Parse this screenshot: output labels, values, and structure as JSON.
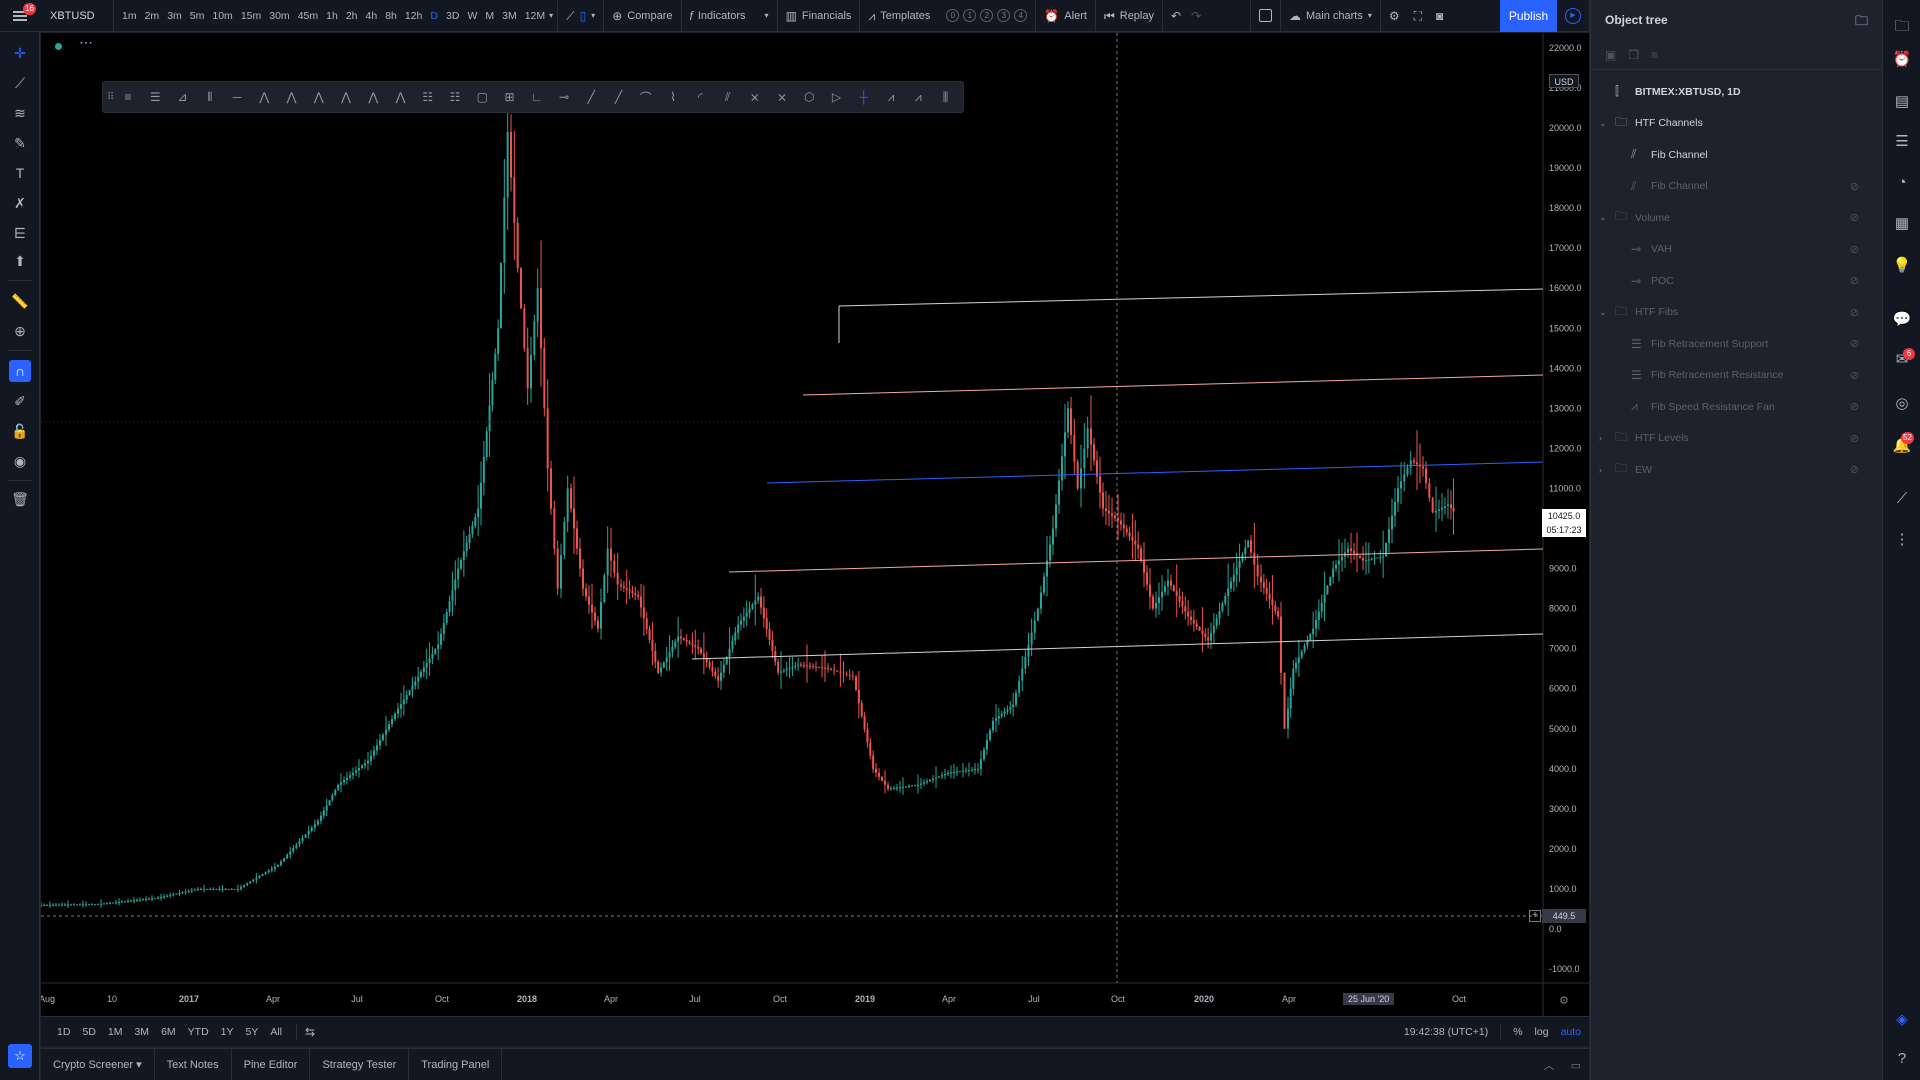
{
  "app": {
    "menu_badge": "16",
    "symbol": "XBTUSD",
    "timeframes": [
      "1m",
      "2m",
      "3m",
      "5m",
      "10m",
      "15m",
      "30m",
      "45m",
      "1h",
      "2h",
      "4h",
      "8h",
      "12h",
      "D",
      "3D",
      "W",
      "M",
      "3M",
      "12M"
    ],
    "active_timeframe": "D",
    "compare_label": "Compare",
    "indicators_label": "Indicators",
    "financials_label": "Financials",
    "templates_label": "Templates",
    "template_slots": [
      "0",
      "1",
      "2",
      "3",
      "4"
    ],
    "alert_label": "Alert",
    "replay_label": "Replay",
    "layout_label": "Main charts",
    "publish_label": "Publish"
  },
  "chart": {
    "currency": "USD",
    "price_axis": [
      "22000.0",
      "21000.0",
      "20000.0",
      "19000.0",
      "18000.0",
      "17000.0",
      "16000.0",
      "15000.0",
      "14000.0",
      "13000.0",
      "12000.0",
      "11000.0",
      "10000.0",
      "9000.0",
      "8000.0",
      "7000.0",
      "6000.0",
      "5000.0",
      "4000.0",
      "3000.0",
      "2000.0",
      "1000.0",
      "0.0",
      "-1000.0"
    ],
    "time_axis": [
      "Aug",
      "10",
      "2017",
      "Apr",
      "Jul",
      "Oct",
      "2018",
      "Apr",
      "Jul",
      "Oct",
      "2019",
      "Apr",
      "Jul",
      "Oct",
      "2020",
      "Apr",
      "Oct"
    ],
    "crosshair_date": "25 Jun '20",
    "last_price": "10425.0",
    "countdown": "05:17:23",
    "crosshair_price": "449.5",
    "accent_up": "#26a69a",
    "accent_down": "#ef5350"
  },
  "rangebar": {
    "ranges": [
      "1D",
      "5D",
      "1M",
      "3M",
      "6M",
      "YTD",
      "1Y",
      "5Y",
      "All"
    ],
    "clock": "19:42:38 (UTC+1)",
    "pct_label": "%",
    "log_label": "log",
    "auto_label": "auto"
  },
  "bottom_tabs": [
    "Crypto Screener",
    "Text Notes",
    "Pine Editor",
    "Strategy Tester",
    "Trading Panel"
  ],
  "object_tree": {
    "title": "Object tree",
    "items": [
      {
        "label": "BITMEX:XBTUSD, 1D",
        "level": 0,
        "icon": "bars-icon",
        "kind": "symbol"
      },
      {
        "label": "HTF Channels",
        "level": 0,
        "icon": "folder-icon",
        "kind": "folder"
      },
      {
        "label": "Fib Channel",
        "level": 1,
        "icon": "fib-channel-icon",
        "kind": "active"
      },
      {
        "label": "Fib Channel",
        "level": 1,
        "icon": "fib-channel-icon",
        "kind": "hidden"
      },
      {
        "label": "Volume",
        "level": 0,
        "icon": "folder-icon",
        "kind": "folder-hidden"
      },
      {
        "label": "VAH",
        "level": 1,
        "icon": "line-icon",
        "kind": "hidden"
      },
      {
        "label": "POC",
        "level": 1,
        "icon": "line-icon",
        "kind": "hidden"
      },
      {
        "label": "HTF Fibs",
        "level": 0,
        "icon": "folder-icon",
        "kind": "folder-hidden"
      },
      {
        "label": "Fib Retracement Support",
        "level": 1,
        "icon": "fib-retracement-icon",
        "kind": "hidden"
      },
      {
        "label": "Fib Retracement Resistance",
        "level": 1,
        "icon": "fib-retracement-icon",
        "kind": "hidden"
      },
      {
        "label": "Fib Speed Resistance Fan",
        "level": 1,
        "icon": "fib-fan-icon",
        "kind": "hidden"
      },
      {
        "label": "HTF Levels",
        "level": 0,
        "icon": "folder-icon",
        "kind": "folder-collapsed"
      },
      {
        "label": "EW",
        "level": 0,
        "icon": "folder-icon",
        "kind": "folder-collapsed"
      }
    ]
  },
  "right_rail": {
    "badge_a": "6",
    "badge_b": "52"
  }
}
